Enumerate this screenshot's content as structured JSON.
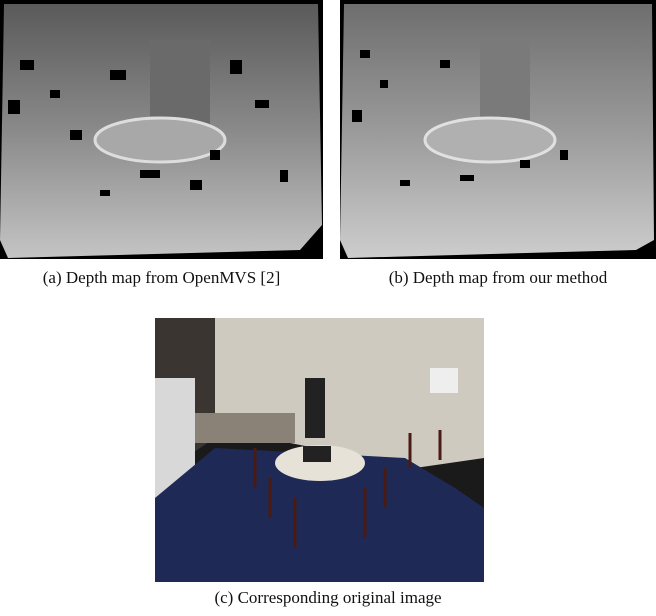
{
  "figure": {
    "subfigures": [
      {
        "caption": "(a) Depth map from OpenMVS [2]"
      },
      {
        "caption": "(b) Depth map from our method"
      },
      {
        "caption": "(c) Corresponding original image"
      }
    ]
  }
}
